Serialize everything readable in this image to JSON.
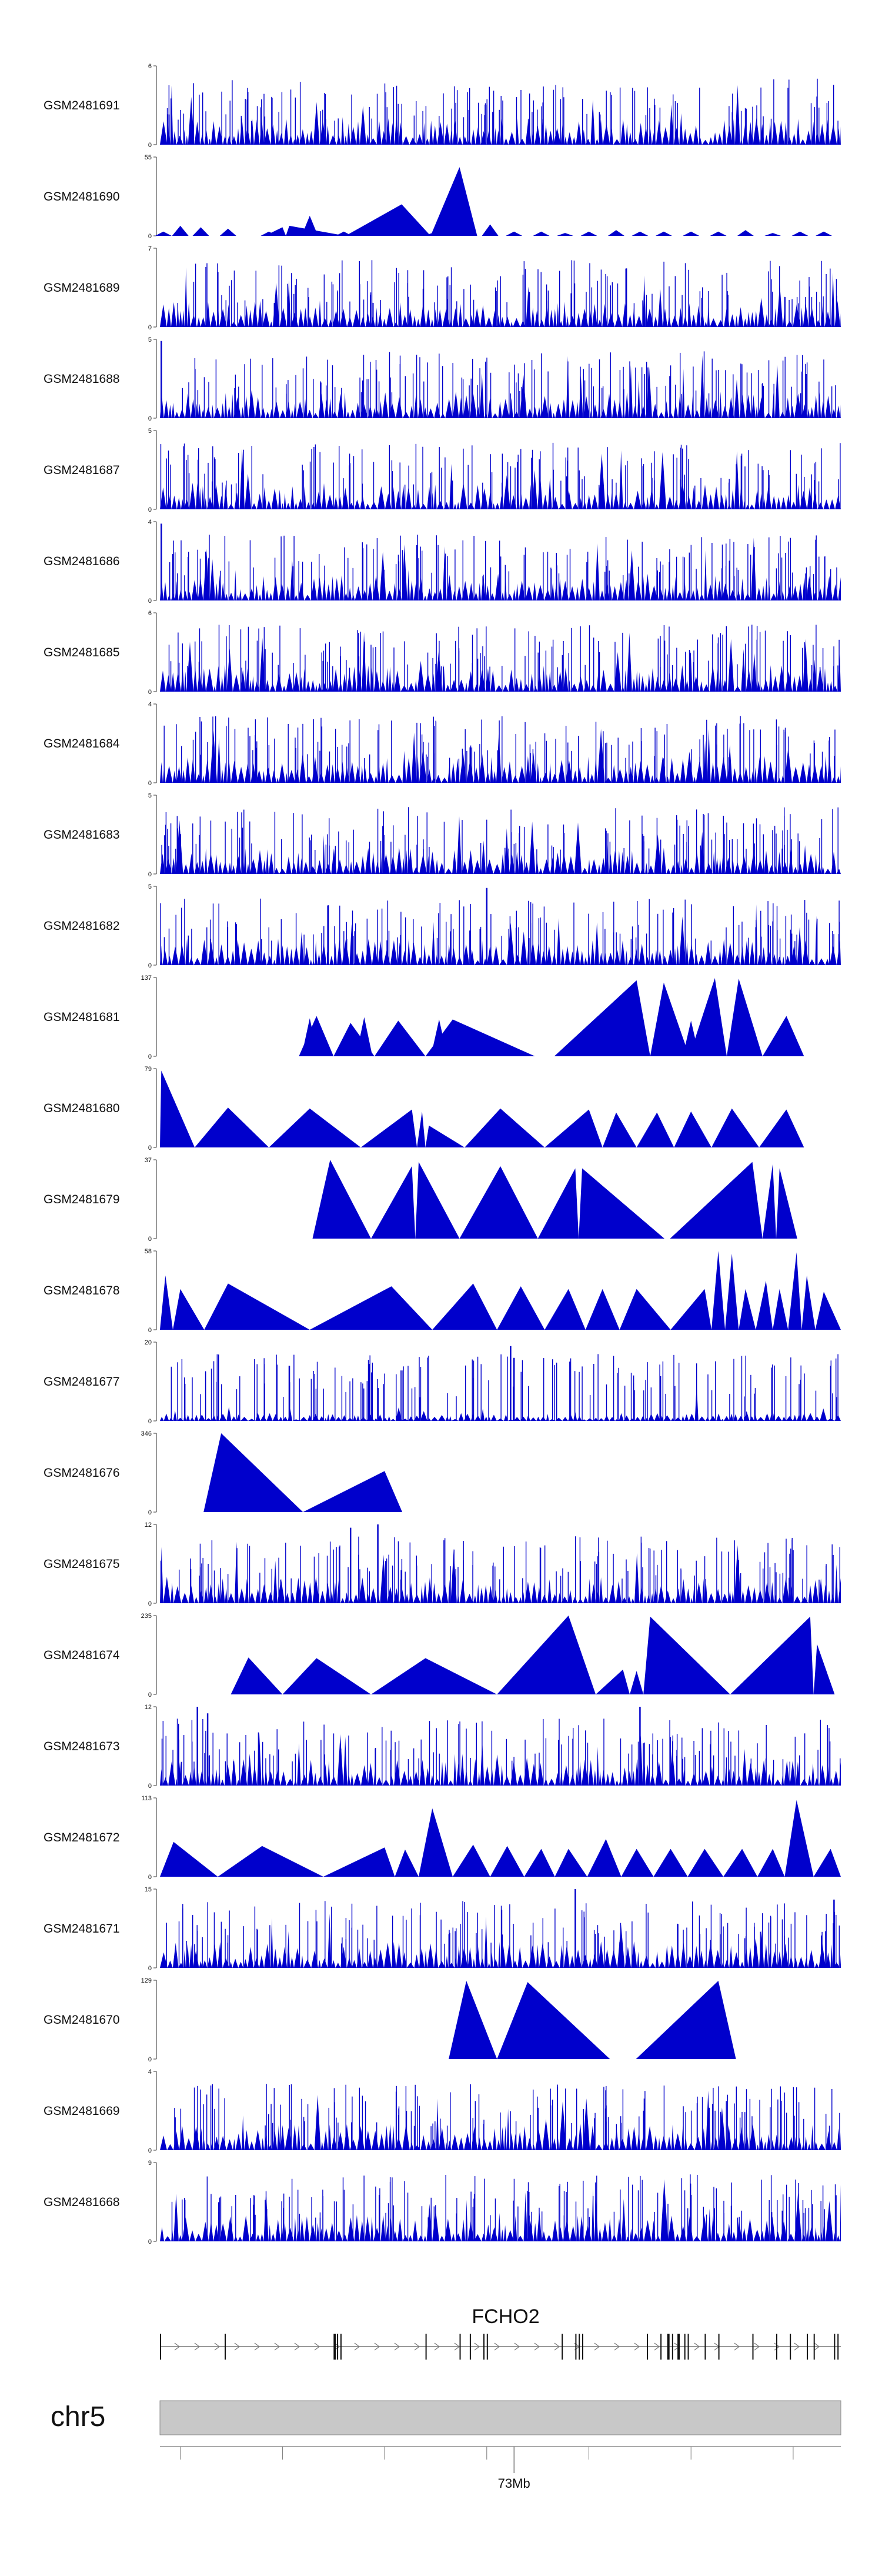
{
  "chart_data": {
    "type": "area",
    "title": "",
    "color": "#0000cc",
    "region": {
      "chromosome": "chr5",
      "start": 72820000,
      "end": 73070000
    },
    "tracks": [
      {
        "sample": "GSM2481691",
        "ymax": 6,
        "style": "dense",
        "seed": 11
      },
      {
        "sample": "GSM2481690",
        "ymax": 55,
        "style": "sparse",
        "seed": 12,
        "peaks": [
          [
            0.005,
            3
          ],
          [
            0.03,
            7
          ],
          [
            0.06,
            6
          ],
          [
            0.1,
            5
          ],
          [
            0.16,
            3
          ],
          [
            0.22,
            14
          ],
          [
            0.27,
            3
          ],
          [
            0.33,
            5
          ],
          [
            0.36,
            3
          ],
          [
            0.4,
            2
          ],
          [
            0.44,
            5
          ],
          [
            0.485,
            8
          ],
          [
            0.52,
            3
          ],
          [
            0.56,
            3
          ],
          [
            0.595,
            2
          ],
          [
            0.63,
            3
          ],
          [
            0.67,
            4
          ],
          [
            0.705,
            3
          ],
          [
            0.74,
            3
          ],
          [
            0.78,
            3
          ],
          [
            0.82,
            3
          ],
          [
            0.86,
            4
          ],
          [
            0.9,
            2
          ],
          [
            0.94,
            3
          ],
          [
            0.975,
            3
          ]
        ],
        "spikes": [
          [
            0.18,
            6
          ],
          [
            0.355,
            22
          ],
          [
            0.44,
            48
          ],
          [
            0.19,
            7
          ]
        ]
      },
      {
        "sample": "GSM2481689",
        "ymax": 7,
        "style": "dense",
        "seed": 13
      },
      {
        "sample": "GSM2481688",
        "ymax": 5,
        "style": "dense",
        "seed": 14,
        "spikes": [
          [
            0.002,
            4.9
          ]
        ]
      },
      {
        "sample": "GSM2481687",
        "ymax": 5,
        "style": "dense",
        "seed": 15
      },
      {
        "sample": "GSM2481686",
        "ymax": 4,
        "style": "dense",
        "seed": 16,
        "spikes": [
          [
            0.002,
            3.9
          ]
        ]
      },
      {
        "sample": "GSM2481685",
        "ymax": 6,
        "style": "dense",
        "seed": 17
      },
      {
        "sample": "GSM2481684",
        "ymax": 4,
        "style": "dense",
        "seed": 18
      },
      {
        "sample": "GSM2481683",
        "ymax": 5,
        "style": "dense",
        "seed": 19
      },
      {
        "sample": "GSM2481682",
        "ymax": 5,
        "style": "dense",
        "seed": 20,
        "spikes": [
          [
            0.48,
            4.9
          ]
        ]
      },
      {
        "sample": "GSM2481681",
        "ymax": 137,
        "style": "sparse",
        "seed": 21,
        "peaks": [
          [
            0.108,
            0
          ],
          [
            0.22,
            66
          ],
          [
            0.245,
            0
          ],
          [
            0.265,
            0
          ],
          [
            0.3,
            68
          ],
          [
            0.34,
            0
          ],
          [
            0.38,
            0
          ],
          [
            0.41,
            64
          ],
          [
            0.45,
            0
          ],
          [
            0.56,
            0
          ],
          [
            0.78,
            62
          ],
          [
            0.76,
            0
          ],
          [
            0.96,
            0
          ]
        ],
        "spikes": [
          [
            0.23,
            70
          ],
          [
            0.28,
            58
          ],
          [
            0.35,
            62
          ],
          [
            0.43,
            64
          ],
          [
            0.7,
            132
          ],
          [
            0.74,
            128
          ],
          [
            0.815,
            136
          ],
          [
            0.85,
            135
          ],
          [
            0.92,
            70
          ]
        ]
      },
      {
        "sample": "GSM2481680",
        "ymax": 79,
        "style": "sparse",
        "seed": 22,
        "spikes": [
          [
            0.002,
            77
          ],
          [
            0.1,
            40
          ],
          [
            0.22,
            39
          ],
          [
            0.37,
            38
          ],
          [
            0.385,
            36
          ],
          [
            0.395,
            22
          ],
          [
            0.5,
            39
          ],
          [
            0.63,
            38
          ],
          [
            0.67,
            35
          ],
          [
            0.73,
            35
          ],
          [
            0.78,
            36
          ],
          [
            0.84,
            39
          ],
          [
            0.92,
            38
          ]
        ]
      },
      {
        "sample": "GSM2481679",
        "ymax": 37,
        "style": "sparse",
        "seed": 23,
        "spikes": [
          [
            0.25,
            37
          ],
          [
            0.37,
            34
          ],
          [
            0.38,
            36
          ],
          [
            0.5,
            34
          ],
          [
            0.61,
            33
          ],
          [
            0.62,
            33
          ],
          [
            0.87,
            36
          ],
          [
            0.9,
            35
          ],
          [
            0.91,
            33
          ]
        ]
      },
      {
        "sample": "GSM2481678",
        "ymax": 58,
        "style": "sparse",
        "seed": 24,
        "spikes": [
          [
            0.008,
            40
          ],
          [
            0.03,
            30
          ],
          [
            0.1,
            34
          ],
          [
            0.34,
            32
          ],
          [
            0.46,
            34
          ],
          [
            0.53,
            32
          ],
          [
            0.6,
            30
          ],
          [
            0.65,
            30
          ],
          [
            0.7,
            30
          ],
          [
            0.8,
            30
          ],
          [
            0.82,
            58
          ],
          [
            0.84,
            56
          ],
          [
            0.86,
            30
          ],
          [
            0.89,
            36
          ],
          [
            0.91,
            30
          ],
          [
            0.935,
            57
          ],
          [
            0.95,
            40
          ],
          [
            0.975,
            28
          ]
        ]
      },
      {
        "sample": "GSM2481677",
        "ymax": 20,
        "style": "dense",
        "seed": 25,
        "low": true,
        "spikes": [
          [
            0.19,
            14
          ],
          [
            0.515,
            19
          ],
          [
            0.52,
            16
          ]
        ]
      },
      {
        "sample": "GSM2481676",
        "ymax": 346,
        "style": "sparse",
        "seed": 26,
        "spikes": [
          [
            0.09,
            346
          ],
          [
            0.33,
            180
          ]
        ]
      },
      {
        "sample": "GSM2481675",
        "ymax": 12,
        "style": "dense",
        "seed": 27,
        "spikes": [
          [
            0.32,
            12
          ],
          [
            0.28,
            11.5
          ]
        ]
      },
      {
        "sample": "GSM2481674",
        "ymax": 235,
        "style": "sparse",
        "seed": 28,
        "spikes": [
          [
            0.13,
            110
          ],
          [
            0.23,
            108
          ],
          [
            0.39,
            108
          ],
          [
            0.6,
            235
          ],
          [
            0.68,
            74
          ],
          [
            0.7,
            70
          ],
          [
            0.72,
            232
          ],
          [
            0.955,
            232
          ],
          [
            0.965,
            150
          ]
        ]
      },
      {
        "sample": "GSM2481673",
        "ymax": 12,
        "style": "dense",
        "seed": 29,
        "spikes": [
          [
            0.055,
            12
          ],
          [
            0.07,
            11
          ],
          [
            0.705,
            12
          ]
        ]
      },
      {
        "sample": "GSM2481672",
        "ymax": 113,
        "style": "sparse",
        "seed": 30,
        "spikes": [
          [
            0.02,
            50
          ],
          [
            0.15,
            44
          ],
          [
            0.33,
            42
          ],
          [
            0.36,
            39
          ],
          [
            0.4,
            98
          ],
          [
            0.46,
            46
          ],
          [
            0.51,
            44
          ],
          [
            0.56,
            40
          ],
          [
            0.6,
            40
          ],
          [
            0.655,
            54
          ],
          [
            0.7,
            40
          ],
          [
            0.75,
            40
          ],
          [
            0.8,
            40
          ],
          [
            0.855,
            40
          ],
          [
            0.9,
            40
          ],
          [
            0.935,
            110
          ],
          [
            0.985,
            40
          ]
        ]
      },
      {
        "sample": "GSM2481671",
        "ymax": 15,
        "style": "dense",
        "seed": 31,
        "spikes": [
          [
            0.61,
            15
          ],
          [
            0.99,
            13
          ]
        ]
      },
      {
        "sample": "GSM2481670",
        "ymax": 129,
        "style": "sparse",
        "seed": 32,
        "spikes": [
          [
            0.45,
            128
          ],
          [
            0.54,
            126
          ],
          [
            0.82,
            128
          ]
        ]
      },
      {
        "sample": "GSM2481669",
        "ymax": 4,
        "style": "dense",
        "seed": 33
      },
      {
        "sample": "GSM2481668",
        "ymax": 9,
        "style": "dense",
        "seed": 34
      }
    ],
    "gene": {
      "name": "FCHO2",
      "strand": "+"
    },
    "chromosome_label": "chr5",
    "axis": {
      "tick_label": "73Mb",
      "tick_value": 72950000
    }
  }
}
